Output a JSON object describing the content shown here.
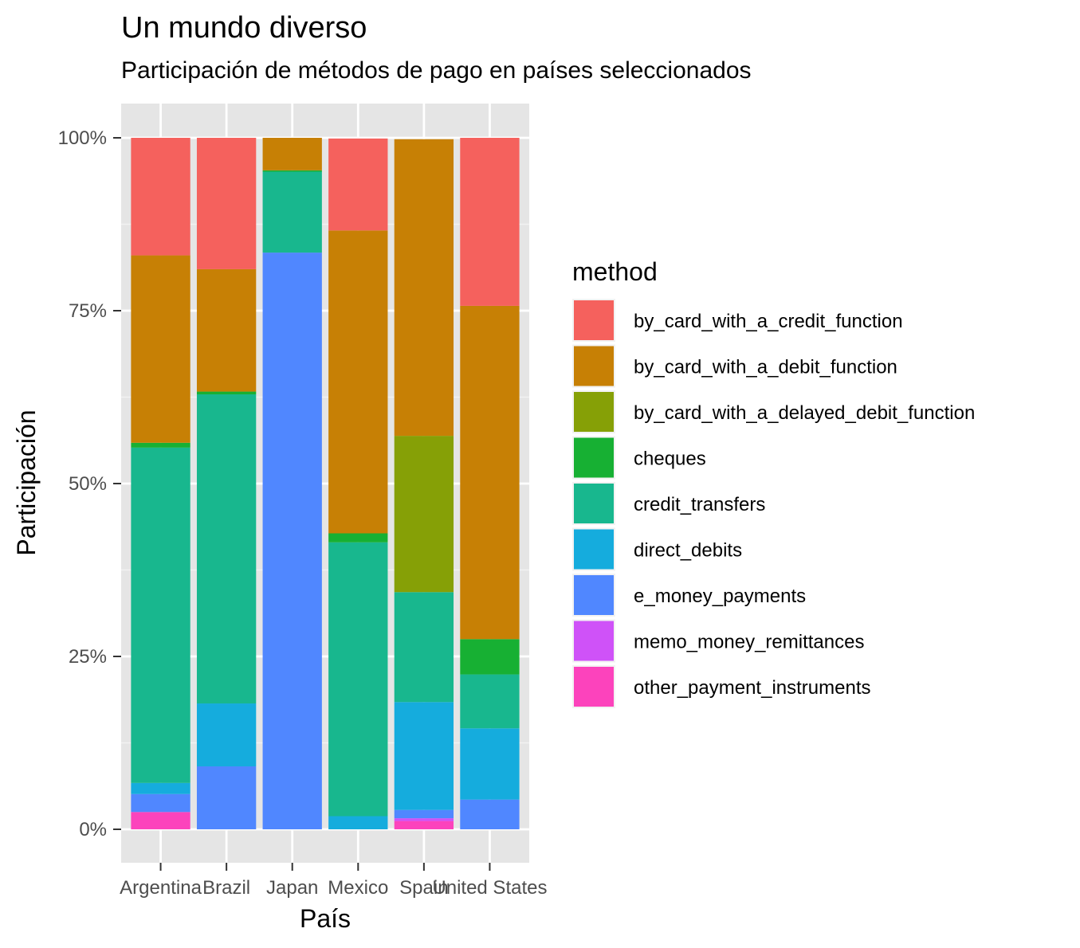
{
  "chart_data": {
    "type": "bar",
    "stacked": true,
    "title": "Un mundo diverso",
    "subtitle": "Participación de métodos de pago en países seleccionados",
    "xlabel": "País",
    "ylabel": "Participación",
    "ylim": [
      0,
      1
    ],
    "y_ticks": [
      "0%",
      "25%",
      "50%",
      "75%",
      "100%"
    ],
    "categories": [
      "Argentina",
      "Brazil",
      "Japan",
      "Mexico",
      "Spain",
      "United States"
    ],
    "legend_title": "method",
    "legend_position": "right",
    "series": [
      {
        "name": "by_card_with_a_credit_function",
        "color": "#F8766D",
        "values": [
          0.17,
          0.19,
          0.0,
          0.133,
          0.0,
          0.243
        ]
      },
      {
        "name": "by_card_with_a_debit_function",
        "color": "#C77C00",
        "values": [
          0.271,
          0.177,
          0.047,
          0.438,
          0.429,
          0.482
        ]
      },
      {
        "name": "by_card_with_a_delayed_debit_function",
        "color": "#7CAE00",
        "values": [
          0.0,
          0.0,
          0.0,
          0.0,
          0.226,
          0.0
        ]
      },
      {
        "name": "cheques",
        "color": "#00BE67",
        "values": [
          0.007,
          0.004,
          0.002,
          0.013,
          0.0,
          0.051
        ]
      },
      {
        "name": "credit_transfers",
        "color": "#00BFC4",
        "values": [
          0.485,
          0.447,
          0.117,
          0.396,
          0.159,
          0.078
        ]
      },
      {
        "name": "direct_debits",
        "color": "#00A9FF",
        "values": [
          0.016,
          0.091,
          0.0,
          0.019,
          0.156,
          0.103
        ]
      },
      {
        "name": "e_money_payments",
        "color": "#619CFF",
        "values": [
          0.026,
          0.091,
          0.834,
          0.0,
          0.012,
          0.043
        ]
      },
      {
        "name": "memo_money_remittances",
        "color": "#C77CFF",
        "values": [
          0.0,
          0.0,
          0.0,
          0.0,
          0.004,
          0.0
        ]
      },
      {
        "name": "other_payment_instruments",
        "color": "#FF61CC",
        "values": [
          0.025,
          0.0,
          0.0,
          0.0,
          0.012,
          0.0
        ]
      }
    ]
  },
  "display_colors": [
    "#F5615D",
    "#C78005",
    "#86A006",
    "#17B033",
    "#18B78E",
    "#15ACDD",
    "#5087FF",
    "#CF52F8",
    "#FC43BC"
  ],
  "panel_background": "#E5E5E5",
  "grid_color": "#FFFFFF"
}
